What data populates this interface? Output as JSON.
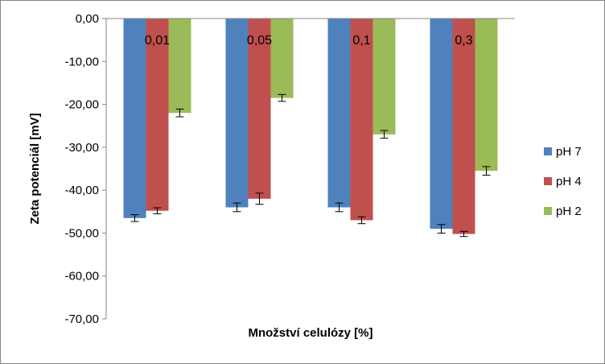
{
  "chart_data": {
    "type": "bar",
    "title": "",
    "xlabel": "Množství celulózy [%]",
    "ylabel": "Zeta potenciál [mV]",
    "ylim": [
      -70,
      0
    ],
    "ytick_step": 10,
    "ytick_labels": [
      "0,00",
      "-10,00",
      "-20,00",
      "-30,00",
      "-40,00",
      "-50,00",
      "-60,00",
      "-70,00"
    ],
    "categories": [
      "0,01",
      "0,05",
      "0,1",
      "0,3"
    ],
    "series": [
      {
        "name": "pH 7",
        "color": "#4f81bd",
        "values": [
          -46.5,
          -44.0,
          -44.0,
          -49.0
        ],
        "errors": [
          0.8,
          1.0,
          1.0,
          1.0
        ]
      },
      {
        "name": "pH 4",
        "color": "#c0504d",
        "values": [
          -44.8,
          -42.0,
          -47.0,
          -50.2
        ],
        "errors": [
          0.7,
          1.3,
          0.8,
          0.6
        ]
      },
      {
        "name": "pH 2",
        "color": "#9bbb59",
        "values": [
          -22.0,
          -18.5,
          -27.0,
          -35.5
        ],
        "errors": [
          0.9,
          0.8,
          0.9,
          1.0
        ]
      }
    ],
    "grid": false,
    "legend_position": "right"
  }
}
